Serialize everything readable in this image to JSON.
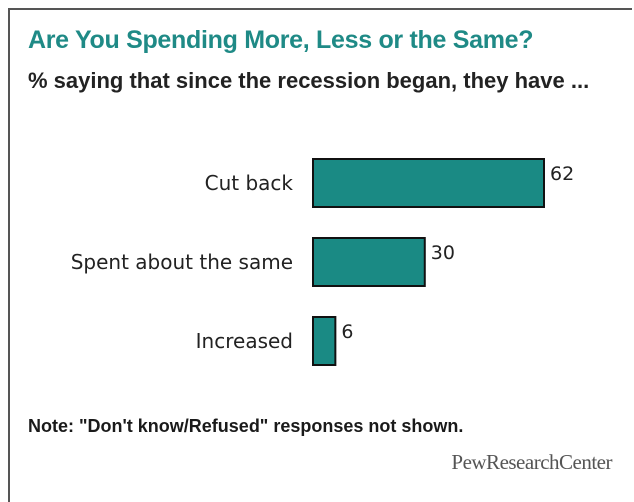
{
  "chart_data": {
    "type": "bar",
    "orientation": "horizontal",
    "title": "Are You Spending More, Less or the Same?",
    "subtitle": "% saying that since the recession began, they have ...",
    "categories": [
      "Cut back",
      "Spent about the same",
      "Increased"
    ],
    "values": [
      62,
      30,
      6
    ],
    "xlim": [
      0,
      62
    ],
    "bar_color": "#1a8a84",
    "note": "Note: \"Don't know/Refused\" responses not shown.",
    "source": "PewResearchCenter"
  }
}
